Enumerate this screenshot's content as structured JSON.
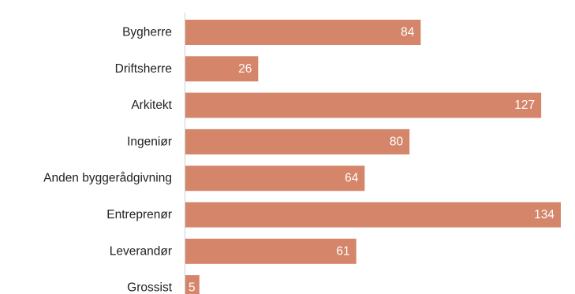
{
  "chart_data": {
    "type": "bar",
    "orientation": "horizontal",
    "categories": [
      "Bygherre",
      "Driftsherre",
      "Arkitekt",
      "Ingeniør",
      "Anden byggerådgivning",
      "Entreprenør",
      "Leverandør",
      "Grossist"
    ],
    "values": [
      84,
      26,
      127,
      80,
      64,
      134,
      61,
      5
    ],
    "data_labels": [
      "84",
      "26",
      "127",
      "80",
      "64",
      "134",
      "61",
      "5"
    ],
    "title": "",
    "xlabel": "",
    "ylabel": "",
    "xlim": [
      0,
      134
    ],
    "grid": false,
    "legend": "none",
    "bar_color": "#d4856a",
    "axis_color": "#d0d0d0"
  }
}
